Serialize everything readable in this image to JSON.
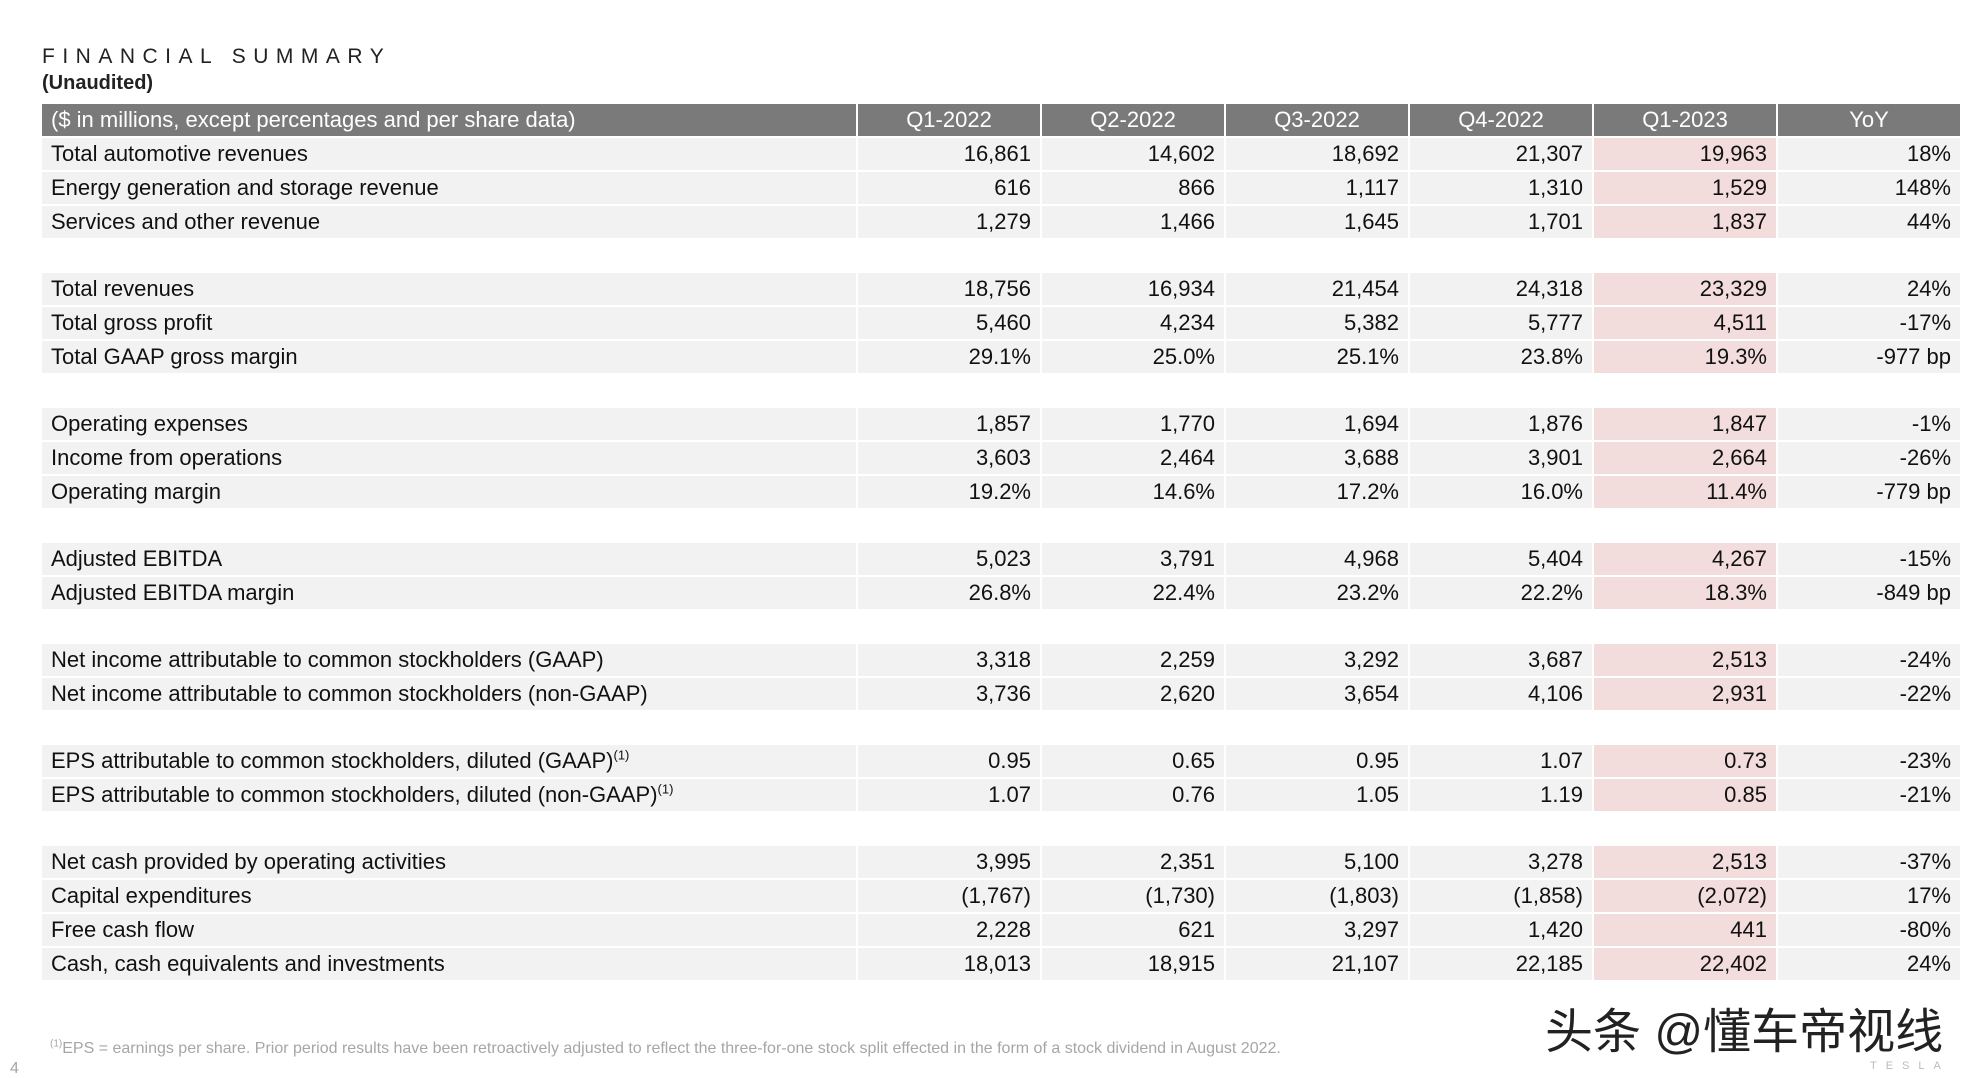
{
  "header": {
    "title": "FINANCIAL SUMMARY",
    "subtitle": "(Unaudited)"
  },
  "table": {
    "columns": [
      "($ in millions, except percentages and per share data)",
      "Q1-2022",
      "Q2-2022",
      "Q3-2022",
      "Q4-2022",
      "Q1-2023",
      "YoY"
    ],
    "rows": [
      {
        "label": "Total automotive revenues",
        "values": [
          "16,861",
          "14,602",
          "18,692",
          "21,307",
          "19,963",
          "18%"
        ]
      },
      {
        "label": "Energy generation and storage revenue",
        "values": [
          "616",
          "866",
          "1,117",
          "1,310",
          "1,529",
          "148%"
        ]
      },
      {
        "label": "Services and other revenue",
        "values": [
          "1,279",
          "1,466",
          "1,645",
          "1,701",
          "1,837",
          "44%"
        ]
      },
      {
        "label": "Total revenues",
        "values": [
          "18,756",
          "16,934",
          "21,454",
          "24,318",
          "23,329",
          "24%"
        ]
      },
      {
        "label": "Total gross profit",
        "values": [
          "5,460",
          "4,234",
          "5,382",
          "5,777",
          "4,511",
          "-17%"
        ]
      },
      {
        "label": "Total GAAP gross margin",
        "values": [
          "29.1%",
          "25.0%",
          "25.1%",
          "23.8%",
          "19.3%",
          "-977 bp"
        ]
      },
      {
        "label": "Operating expenses",
        "values": [
          "1,857",
          "1,770",
          "1,694",
          "1,876",
          "1,847",
          "-1%"
        ]
      },
      {
        "label": "Income from operations",
        "values": [
          "3,603",
          "2,464",
          "3,688",
          "3,901",
          "2,664",
          "-26%"
        ]
      },
      {
        "label": "Operating margin",
        "values": [
          "19.2%",
          "14.6%",
          "17.2%",
          "16.0%",
          "11.4%",
          "-779 bp"
        ]
      },
      {
        "label": "Adjusted EBITDA",
        "values": [
          "5,023",
          "3,791",
          "4,968",
          "5,404",
          "4,267",
          "-15%"
        ]
      },
      {
        "label": "Adjusted EBITDA margin",
        "values": [
          "26.8%",
          "22.4%",
          "23.2%",
          "22.2%",
          "18.3%",
          "-849 bp"
        ]
      },
      {
        "label": "Net income attributable to common stockholders (GAAP)",
        "values": [
          "3,318",
          "2,259",
          "3,292",
          "3,687",
          "2,513",
          "-24%"
        ]
      },
      {
        "label": "Net income attributable to common stockholders (non-GAAP)",
        "values": [
          "3,736",
          "2,620",
          "3,654",
          "4,106",
          "2,931",
          "-22%"
        ]
      },
      {
        "label": "EPS attributable to common stockholders, diluted (GAAP)",
        "sup": "(1)",
        "values": [
          "0.95",
          "0.65",
          "0.95",
          "1.07",
          "0.73",
          "-23%"
        ]
      },
      {
        "label": "EPS attributable to common stockholders, diluted (non-GAAP)",
        "sup": "(1)",
        "values": [
          "1.07",
          "0.76",
          "1.05",
          "1.19",
          "0.85",
          "-21%"
        ]
      },
      {
        "label": "Net cash provided by operating activities",
        "values": [
          "3,995",
          "2,351",
          "5,100",
          "3,278",
          "2,513",
          "-37%"
        ]
      },
      {
        "label": "Capital expenditures",
        "values": [
          "(1,767)",
          "(1,730)",
          "(1,803)",
          "(1,858)",
          "(2,072)",
          "17%"
        ]
      },
      {
        "label": "Free cash flow",
        "values": [
          "2,228",
          "621",
          "3,297",
          "1,420",
          "441",
          "-80%"
        ]
      },
      {
        "label": "Cash, cash equivalents and investments",
        "values": [
          "18,013",
          "18,915",
          "21,107",
          "22,185",
          "22,402",
          "24%"
        ]
      }
    ],
    "groups": [
      3,
      3,
      3,
      2,
      2,
      2,
      4
    ]
  },
  "footnote": {
    "sup": "(1)",
    "text": "EPS = earnings per share. Prior period results have been retroactively adjusted to reflect the three-for-one stock split effected in the form of a stock dividend in August 2022."
  },
  "page_number": "4",
  "watermark": "头条 @懂车帝视线",
  "brand": "TESLA",
  "colors": {
    "header_bg": "#7a7a7a",
    "row_bg": "#f2f2f2",
    "highlight_bg": "#f3dcdc"
  }
}
